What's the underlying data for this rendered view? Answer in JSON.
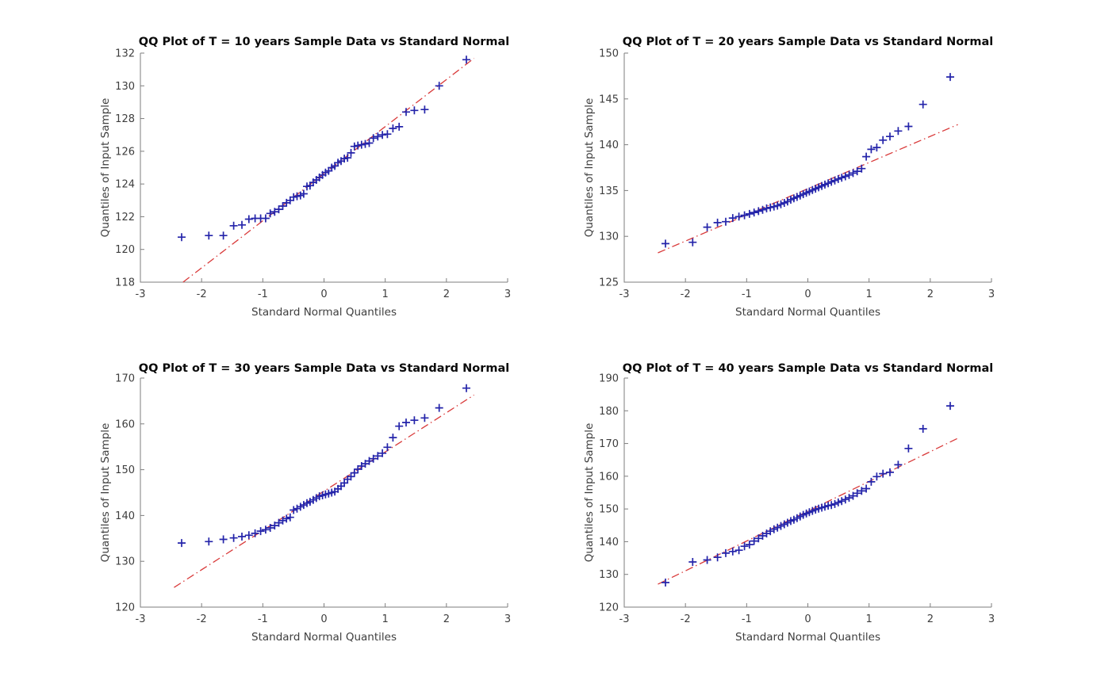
{
  "page": {
    "background": "#ffffff"
  },
  "chart_data": [
    {
      "type": "scatter",
      "title": "QQ Plot of T = 10 years Sample Data vs Standard Normal",
      "xlabel": "Standard Normal Quantiles",
      "ylabel": "Quantiles of Input Sample",
      "xlim": [
        -3,
        3
      ],
      "ylim": [
        118,
        132
      ],
      "xticks": [
        -3,
        -2,
        -1,
        0,
        1,
        2,
        3
      ],
      "yticks": [
        118,
        120,
        122,
        124,
        126,
        128,
        130,
        132
      ],
      "grid": false,
      "legend": null,
      "marker": "+",
      "marker_color": "#2424aa",
      "ref_line": {
        "style": "dash-dot",
        "color": "#d93a3a",
        "x1": -2.303,
        "y1": 118.0,
        "x2": 2.45,
        "y2": 131.68
      },
      "x": [
        -2.326,
        -1.881,
        -1.645,
        -1.476,
        -1.341,
        -1.227,
        -1.126,
        -1.036,
        -0.954,
        -0.878,
        -0.806,
        -0.739,
        -0.674,
        -0.613,
        -0.553,
        -0.496,
        -0.44,
        -0.385,
        -0.332,
        -0.279,
        -0.228,
        -0.176,
        -0.126,
        -0.075,
        -0.025,
        0.025,
        0.075,
        0.126,
        0.176,
        0.228,
        0.279,
        0.332,
        0.385,
        0.44,
        0.496,
        0.553,
        0.613,
        0.674,
        0.739,
        0.806,
        0.878,
        0.954,
        1.036,
        1.126,
        1.227,
        1.341,
        1.476,
        1.645,
        1.881,
        2.326
      ],
      "y": [
        120.75,
        120.85,
        120.85,
        121.45,
        121.5,
        121.85,
        121.9,
        121.9,
        121.9,
        122.2,
        122.3,
        122.45,
        122.65,
        122.85,
        123.0,
        123.2,
        123.25,
        123.3,
        123.4,
        123.85,
        123.9,
        124.1,
        124.25,
        124.4,
        124.55,
        124.7,
        124.8,
        125.0,
        125.1,
        125.3,
        125.4,
        125.55,
        125.6,
        125.9,
        126.3,
        126.35,
        126.4,
        126.45,
        126.5,
        126.8,
        126.9,
        127.0,
        127.05,
        127.4,
        127.5,
        128.4,
        128.5,
        128.55,
        130.0,
        131.6
      ]
    },
    {
      "type": "scatter",
      "title": "QQ Plot of T = 20 years Sample Data vs Standard Normal",
      "xlabel": "Standard Normal Quantiles",
      "ylabel": "Quantiles of Input Sample",
      "xlim": [
        -3,
        3
      ],
      "ylim": [
        125,
        150
      ],
      "xticks": [
        -3,
        -2,
        -1,
        0,
        1,
        2,
        3
      ],
      "yticks": [
        125,
        130,
        135,
        140,
        145,
        150
      ],
      "grid": false,
      "legend": null,
      "marker": "+",
      "marker_color": "#2424aa",
      "ref_line": {
        "style": "dash-dot",
        "color": "#d93a3a",
        "x1": -2.45,
        "y1": 128.2,
        "x2": 2.45,
        "y2": 142.2
      },
      "x": [
        -2.326,
        -1.881,
        -1.645,
        -1.476,
        -1.341,
        -1.227,
        -1.126,
        -1.036,
        -0.954,
        -0.878,
        -0.806,
        -0.739,
        -0.674,
        -0.613,
        -0.553,
        -0.496,
        -0.44,
        -0.385,
        -0.332,
        -0.279,
        -0.228,
        -0.176,
        -0.126,
        -0.075,
        -0.025,
        0.025,
        0.075,
        0.126,
        0.176,
        0.228,
        0.279,
        0.332,
        0.385,
        0.44,
        0.496,
        0.553,
        0.613,
        0.674,
        0.739,
        0.806,
        0.878,
        0.954,
        1.036,
        1.126,
        1.227,
        1.341,
        1.476,
        1.645,
        1.881,
        2.326
      ],
      "y": [
        129.2,
        129.35,
        131.0,
        131.5,
        131.6,
        132.0,
        132.15,
        132.3,
        132.45,
        132.6,
        132.75,
        132.9,
        133.05,
        133.15,
        133.25,
        133.35,
        133.5,
        133.65,
        133.8,
        134.0,
        134.15,
        134.3,
        134.45,
        134.6,
        134.75,
        134.9,
        135.05,
        135.2,
        135.35,
        135.5,
        135.65,
        135.8,
        135.95,
        136.1,
        136.25,
        136.4,
        136.55,
        136.7,
        136.9,
        137.1,
        137.4,
        138.7,
        139.5,
        139.7,
        140.5,
        140.9,
        141.5,
        142.0,
        144.4,
        147.4
      ]
    },
    {
      "type": "scatter",
      "title": "QQ Plot of T = 30 years Sample Data vs Standard Normal",
      "xlabel": "Standard Normal Quantiles",
      "ylabel": "Quantiles of Input Sample",
      "xlim": [
        -3,
        3
      ],
      "ylim": [
        120,
        170
      ],
      "xticks": [
        -3,
        -2,
        -1,
        0,
        1,
        2,
        3
      ],
      "yticks": [
        120,
        130,
        140,
        150,
        160,
        170
      ],
      "grid": false,
      "legend": null,
      "marker": "+",
      "marker_color": "#2424aa",
      "ref_line": {
        "style": "dash-dot",
        "color": "#d93a3a",
        "x1": -2.45,
        "y1": 124.3,
        "x2": 2.45,
        "y2": 166.3
      },
      "x": [
        -2.326,
        -1.881,
        -1.645,
        -1.476,
        -1.341,
        -1.227,
        -1.126,
        -1.036,
        -0.954,
        -0.878,
        -0.806,
        -0.739,
        -0.674,
        -0.613,
        -0.553,
        -0.496,
        -0.44,
        -0.385,
        -0.332,
        -0.279,
        -0.228,
        -0.176,
        -0.126,
        -0.075,
        -0.025,
        0.025,
        0.075,
        0.126,
        0.176,
        0.228,
        0.279,
        0.332,
        0.385,
        0.44,
        0.496,
        0.553,
        0.613,
        0.674,
        0.739,
        0.806,
        0.878,
        0.954,
        1.036,
        1.126,
        1.227,
        1.341,
        1.476,
        1.645,
        1.881,
        2.326
      ],
      "y": [
        134.0,
        134.3,
        134.8,
        135.1,
        135.4,
        135.7,
        136.1,
        136.6,
        136.9,
        137.3,
        137.8,
        138.4,
        138.9,
        139.3,
        139.6,
        141.2,
        141.5,
        141.9,
        142.3,
        142.7,
        143.0,
        143.4,
        143.8,
        144.2,
        144.4,
        144.6,
        144.8,
        145.0,
        145.2,
        145.8,
        146.4,
        147.1,
        147.9,
        148.5,
        149.3,
        150.1,
        150.8,
        151.3,
        151.9,
        152.4,
        153.0,
        153.6,
        154.9,
        157.0,
        159.5,
        160.3,
        160.8,
        161.3,
        163.5,
        167.8
      ]
    },
    {
      "type": "scatter",
      "title": "QQ Plot of T = 40 years Sample Data vs Standard Normal",
      "xlabel": "Standard Normal Quantiles",
      "ylabel": "Quantiles of Input Sample",
      "xlim": [
        -3,
        3
      ],
      "ylim": [
        120,
        190
      ],
      "xticks": [
        -3,
        -2,
        -1,
        0,
        1,
        2,
        3
      ],
      "yticks": [
        120,
        130,
        140,
        150,
        160,
        170,
        180,
        190
      ],
      "grid": false,
      "legend": null,
      "marker": "+",
      "marker_color": "#2424aa",
      "ref_line": {
        "style": "dash-dot",
        "color": "#d93a3a",
        "x1": -2.45,
        "y1": 127.0,
        "x2": 2.45,
        "y2": 171.6
      },
      "x": [
        -2.326,
        -1.881,
        -1.645,
        -1.476,
        -1.341,
        -1.227,
        -1.126,
        -1.036,
        -0.954,
        -0.878,
        -0.806,
        -0.739,
        -0.674,
        -0.613,
        -0.553,
        -0.496,
        -0.44,
        -0.385,
        -0.332,
        -0.279,
        -0.228,
        -0.176,
        -0.126,
        -0.075,
        -0.025,
        0.025,
        0.075,
        0.126,
        0.176,
        0.228,
        0.279,
        0.332,
        0.385,
        0.44,
        0.496,
        0.553,
        0.613,
        0.674,
        0.739,
        0.806,
        0.878,
        0.954,
        1.036,
        1.126,
        1.227,
        1.341,
        1.476,
        1.645,
        1.881,
        2.326
      ],
      "y": [
        127.5,
        133.8,
        134.4,
        135.2,
        136.5,
        137.0,
        137.4,
        138.6,
        139.1,
        140.2,
        141.0,
        141.8,
        142.5,
        143.2,
        143.8,
        144.3,
        144.8,
        145.3,
        145.8,
        146.3,
        146.7,
        147.2,
        147.7,
        148.2,
        148.6,
        149.0,
        149.4,
        149.8,
        150.1,
        150.4,
        150.7,
        151.0,
        151.2,
        151.5,
        152.0,
        152.4,
        152.9,
        153.4,
        154.0,
        154.8,
        155.5,
        156.2,
        158.3,
        159.9,
        160.8,
        161.2,
        163.5,
        168.5,
        174.5,
        181.5
      ]
    }
  ]
}
